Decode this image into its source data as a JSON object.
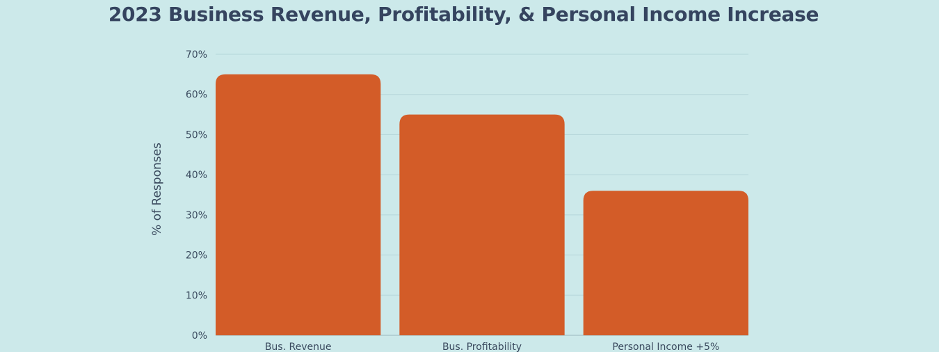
{
  "chart_data": {
    "type": "bar",
    "title": "2023 Business Revenue, Profitability, & Personal Income Increase",
    "ylabel": "% of Responses",
    "xlabel": "",
    "categories": [
      "Bus. Revenue",
      "Bus. Profitability",
      "Personal Income +5%"
    ],
    "values": [
      65,
      55,
      36
    ],
    "ylim": [
      0,
      70
    ],
    "yticks": [
      "0%",
      "10%",
      "20%",
      "30%",
      "40%",
      "50%",
      "60%",
      "70%"
    ],
    "grid": true,
    "bar_color": "#d35c28",
    "grid_color": "#b5d6d9",
    "background_color": "#cce9ea"
  }
}
